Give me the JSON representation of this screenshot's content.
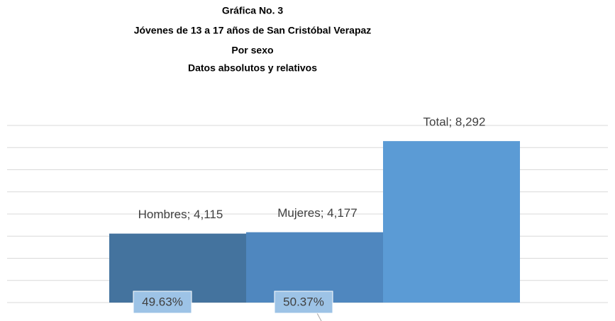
{
  "chart_data": {
    "type": "bar",
    "title": [
      "Gráfica No. 3",
      "Jóvenes de 13 a 17 años de San Cristóbal Verapaz",
      "Por sexo",
      "Datos absolutos y relativos"
    ],
    "categories": [
      "Hombres",
      "Mujeres",
      "Total"
    ],
    "values": [
      4115,
      4177,
      8292
    ],
    "value_labels": [
      "Hombres; 4,115",
      "Mujeres; 4,177",
      "Total; 8,292"
    ],
    "percent_values": [
      {
        "value": 49.63,
        "label": "49.63%"
      },
      {
        "value": 50.37,
        "label": "50.37%"
      }
    ],
    "colors": [
      "#44739e",
      "#4f87bf",
      "#5b9bd5"
    ],
    "ylim": [
      1000,
      9000
    ],
    "yticks": [
      1000,
      2000,
      3000,
      4000,
      5000,
      6000,
      7000,
      8000,
      9000
    ],
    "grid": true
  }
}
